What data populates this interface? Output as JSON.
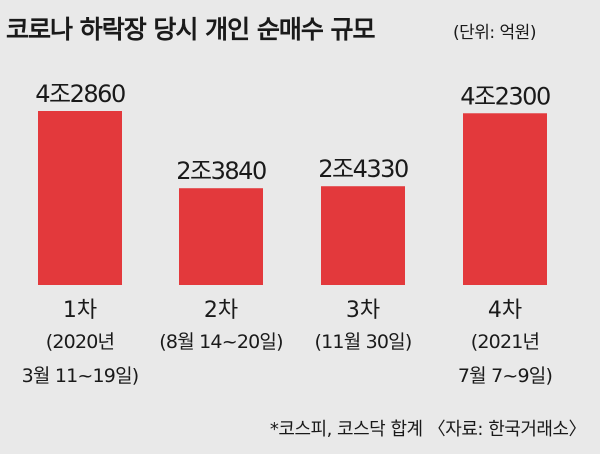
{
  "header": {
    "title": "코로나 하락장 당시 개인 순매수 규모",
    "unit": "(단위: 억원)"
  },
  "footnote": "*코스피, 코스닥 합계 〈자료: 한국거래소〉",
  "colors": {
    "bar": "#e3393c",
    "background": "#e9e9e9",
    "text": "#1a1a1a"
  },
  "chart_data": {
    "type": "bar",
    "title": "코로나 하락장 당시 개인 순매수 규모",
    "unit": "(단위: 억원)",
    "ylim": [
      0,
      42860
    ],
    "categories": [
      "1차",
      "2차",
      "3차",
      "4차"
    ],
    "periods": [
      [
        "(2020년",
        "3월 11~19일)"
      ],
      [
        "(8월 14~20일)"
      ],
      [
        "(11월 30일)"
      ],
      [
        "(2021년",
        "7월 7~9일)"
      ]
    ],
    "values": [
      42860,
      23840,
      24330,
      42300
    ],
    "value_labels": [
      "4조2860",
      "2조3840",
      "2조4330",
      "4조2300"
    ]
  }
}
